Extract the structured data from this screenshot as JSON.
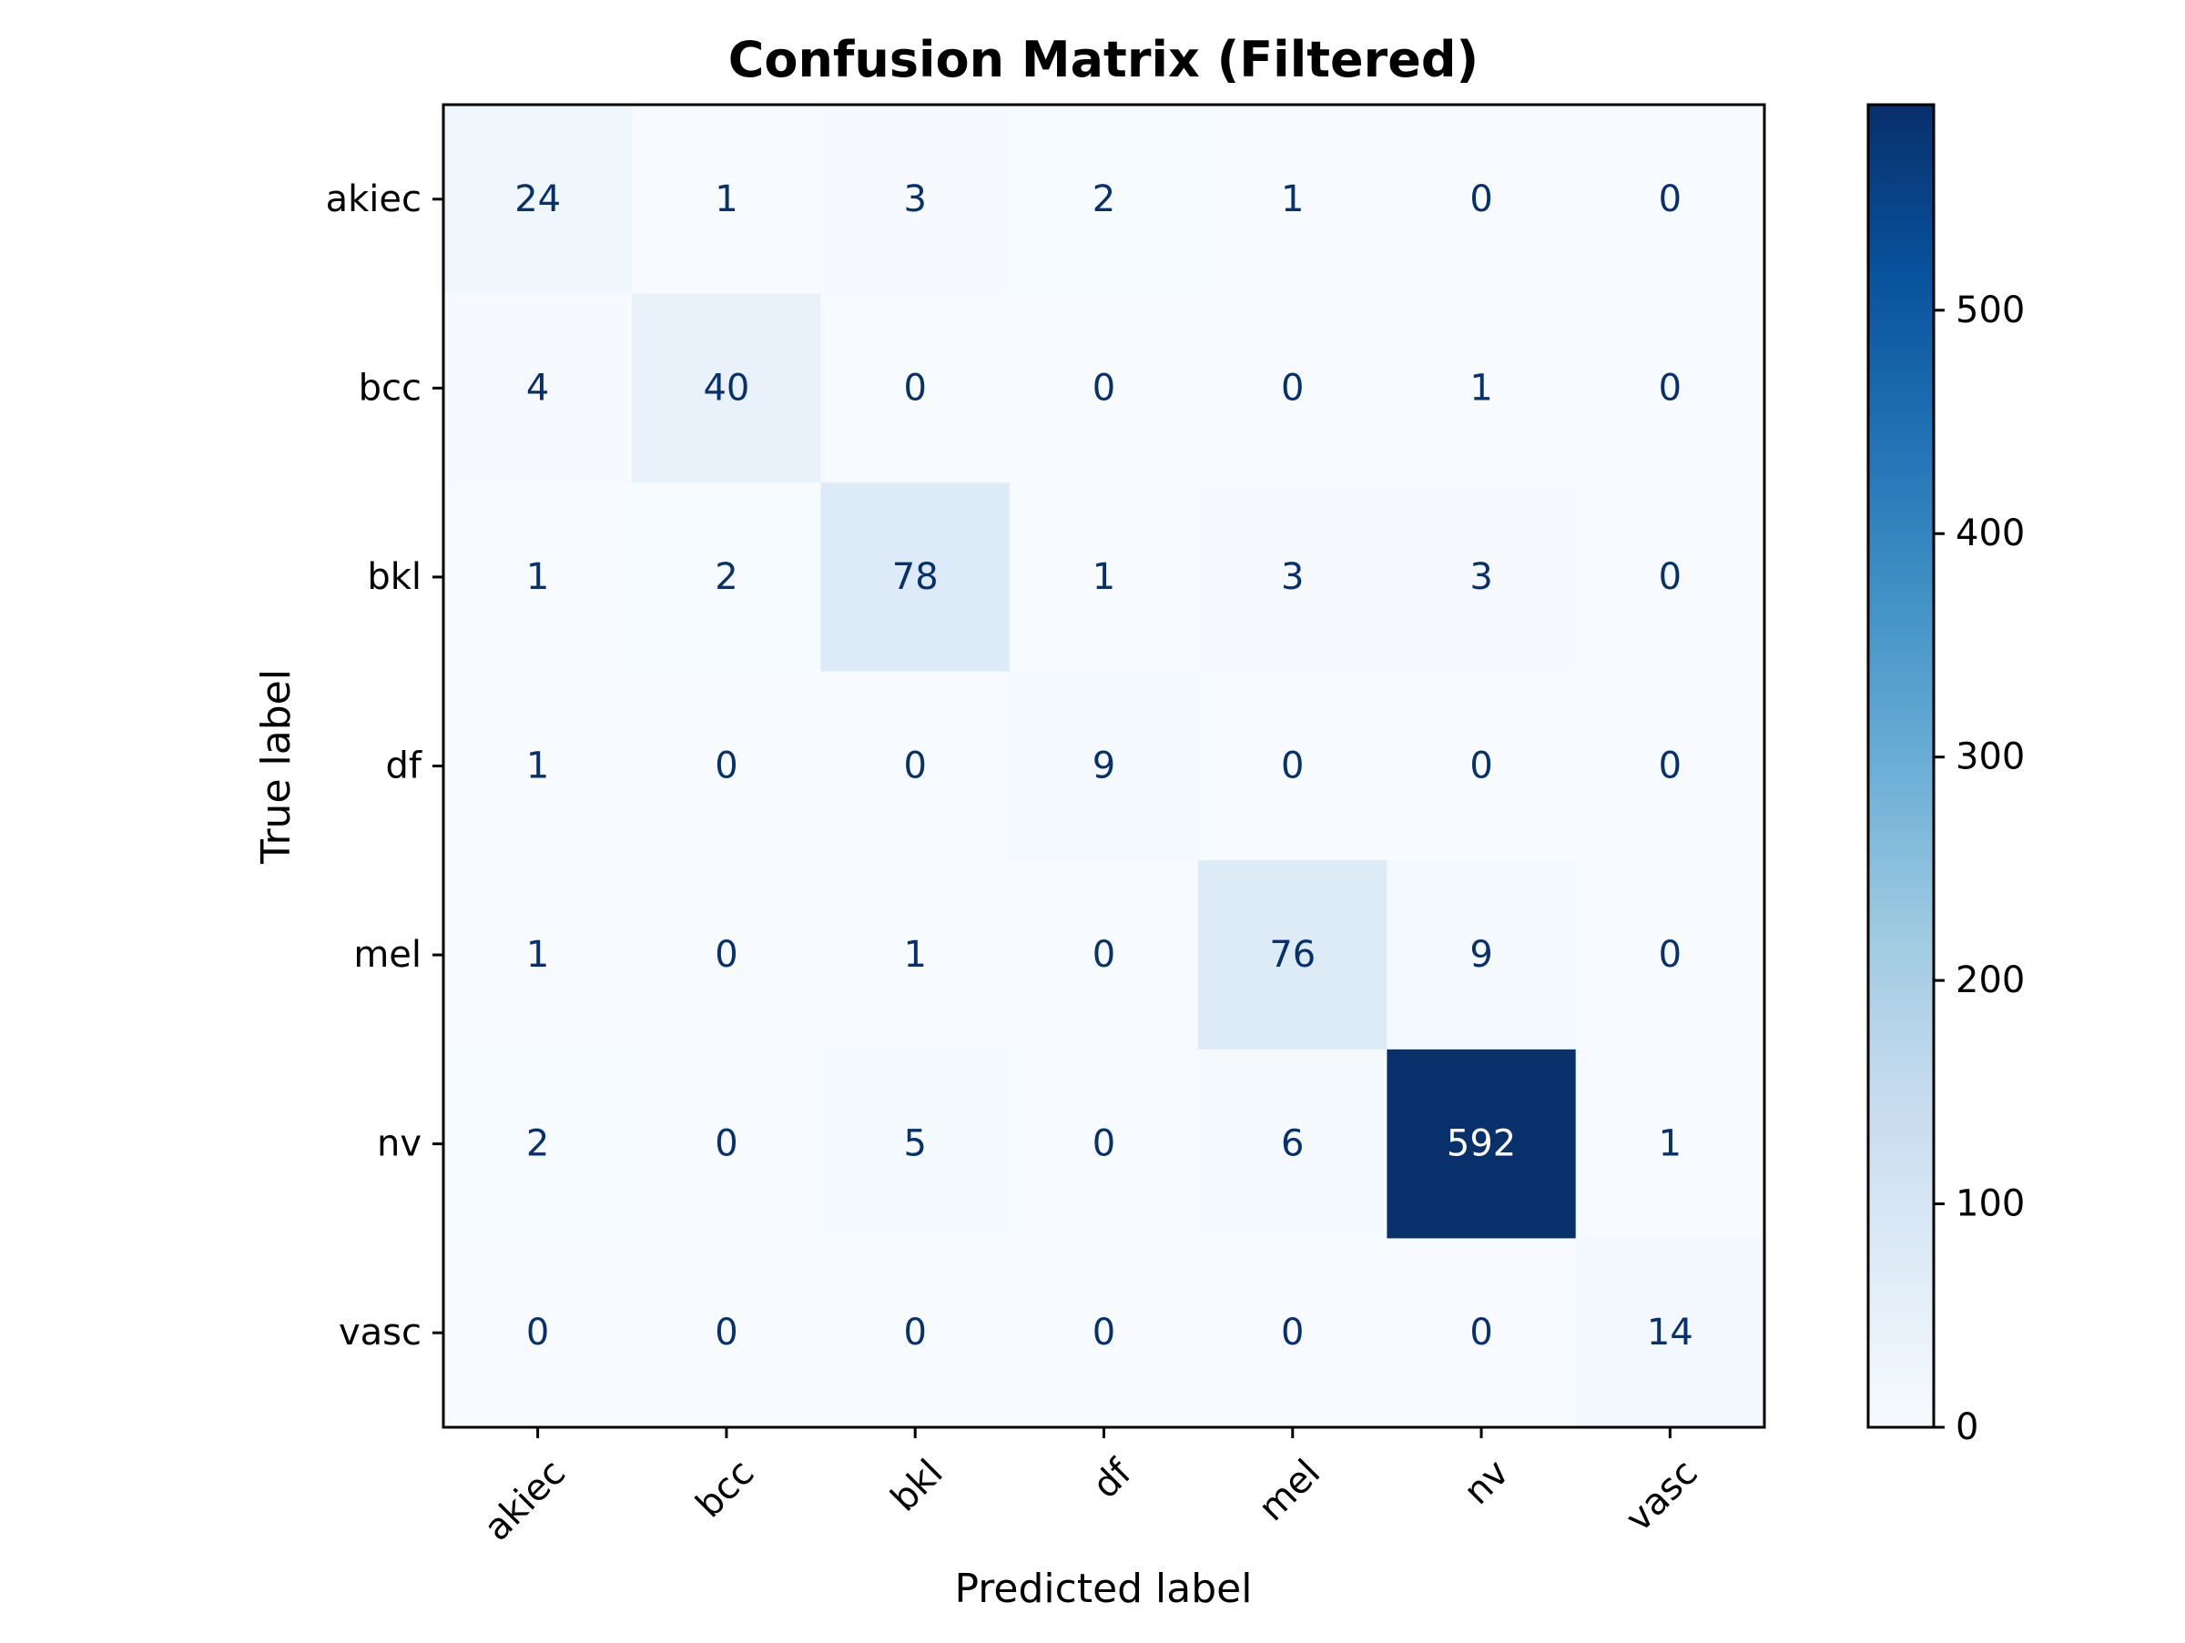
{
  "chart_data": {
    "type": "heatmap",
    "title": "Confusion Matrix (Filtered)",
    "xlabel": "Predicted label",
    "ylabel": "True label",
    "x_categories": [
      "akiec",
      "bcc",
      "bkl",
      "df",
      "mel",
      "nv",
      "vasc"
    ],
    "y_categories": [
      "akiec",
      "bcc",
      "bkl",
      "df",
      "mel",
      "nv",
      "vasc"
    ],
    "values": [
      [
        24,
        1,
        3,
        2,
        1,
        0,
        0
      ],
      [
        4,
        40,
        0,
        0,
        0,
        1,
        0
      ],
      [
        1,
        2,
        78,
        1,
        3,
        3,
        0
      ],
      [
        1,
        0,
        0,
        9,
        0,
        0,
        0
      ],
      [
        1,
        0,
        1,
        0,
        76,
        9,
        0
      ],
      [
        2,
        0,
        5,
        0,
        6,
        592,
        1
      ],
      [
        0,
        0,
        0,
        0,
        0,
        0,
        14
      ]
    ],
    "colormap": "Blues",
    "colorbar": {
      "range": [
        0,
        592
      ],
      "ticks": [
        0,
        100,
        200,
        300,
        400,
        500
      ],
      "tick_labels": [
        "0",
        "100",
        "200",
        "300",
        "400",
        "500"
      ]
    },
    "x_tick_rotation_deg": 45,
    "grid": false
  }
}
